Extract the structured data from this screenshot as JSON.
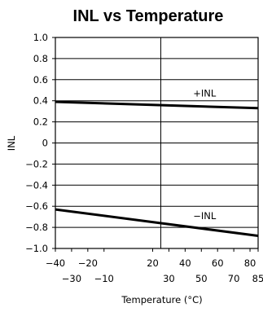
{
  "chart_data": {
    "type": "line",
    "title": "INL vs Temperature",
    "xlabel": "Temperature (°C)",
    "ylabel": "INL",
    "xlim": [
      -40,
      85
    ],
    "ylim": [
      -1.0,
      1.0
    ],
    "grid": true,
    "y_ticks": [
      {
        "value": 1.0,
        "label": "1.0"
      },
      {
        "value": 0.8,
        "label": "0.8"
      },
      {
        "value": 0.6,
        "label": "0.6"
      },
      {
        "value": 0.4,
        "label": "0.4"
      },
      {
        "value": 0.2,
        "label": "0.2"
      },
      {
        "value": 0,
        "label": "0"
      },
      {
        "value": -0.2,
        "label": "−0.2"
      },
      {
        "value": -0.4,
        "label": "−0.4"
      },
      {
        "value": -0.6,
        "label": "−0.6"
      },
      {
        "value": -0.8,
        "label": "−0.8"
      },
      {
        "value": -1.0,
        "label": "−1.0"
      }
    ],
    "x_ticks_upper": [
      {
        "value": -40,
        "label": "−40"
      },
      {
        "value": -20,
        "label": "−20"
      },
      {
        "value": 20,
        "label": "20"
      },
      {
        "value": 40,
        "label": "40"
      },
      {
        "value": 60,
        "label": "60"
      },
      {
        "value": 80,
        "label": "80"
      }
    ],
    "x_ticks_lower": [
      {
        "value": -30,
        "label": "−30"
      },
      {
        "value": -10,
        "label": "−10"
      },
      {
        "value": 30,
        "label": "30"
      },
      {
        "value": 50,
        "label": "50"
      },
      {
        "value": 70,
        "label": "70"
      },
      {
        "value": 85,
        "label": "85"
      }
    ],
    "vertical_gridline": 25,
    "series": [
      {
        "name": "+INL",
        "x": [
          -40,
          85
        ],
        "y": [
          0.39,
          0.33
        ]
      },
      {
        "name": "−INL",
        "x": [
          -40,
          85
        ],
        "y": [
          -0.63,
          -0.88
        ]
      }
    ],
    "annotations": [
      {
        "text": "+INL",
        "x": 52,
        "y": 0.47
      },
      {
        "text": "−INL",
        "x": 52,
        "y": -0.69
      }
    ]
  }
}
